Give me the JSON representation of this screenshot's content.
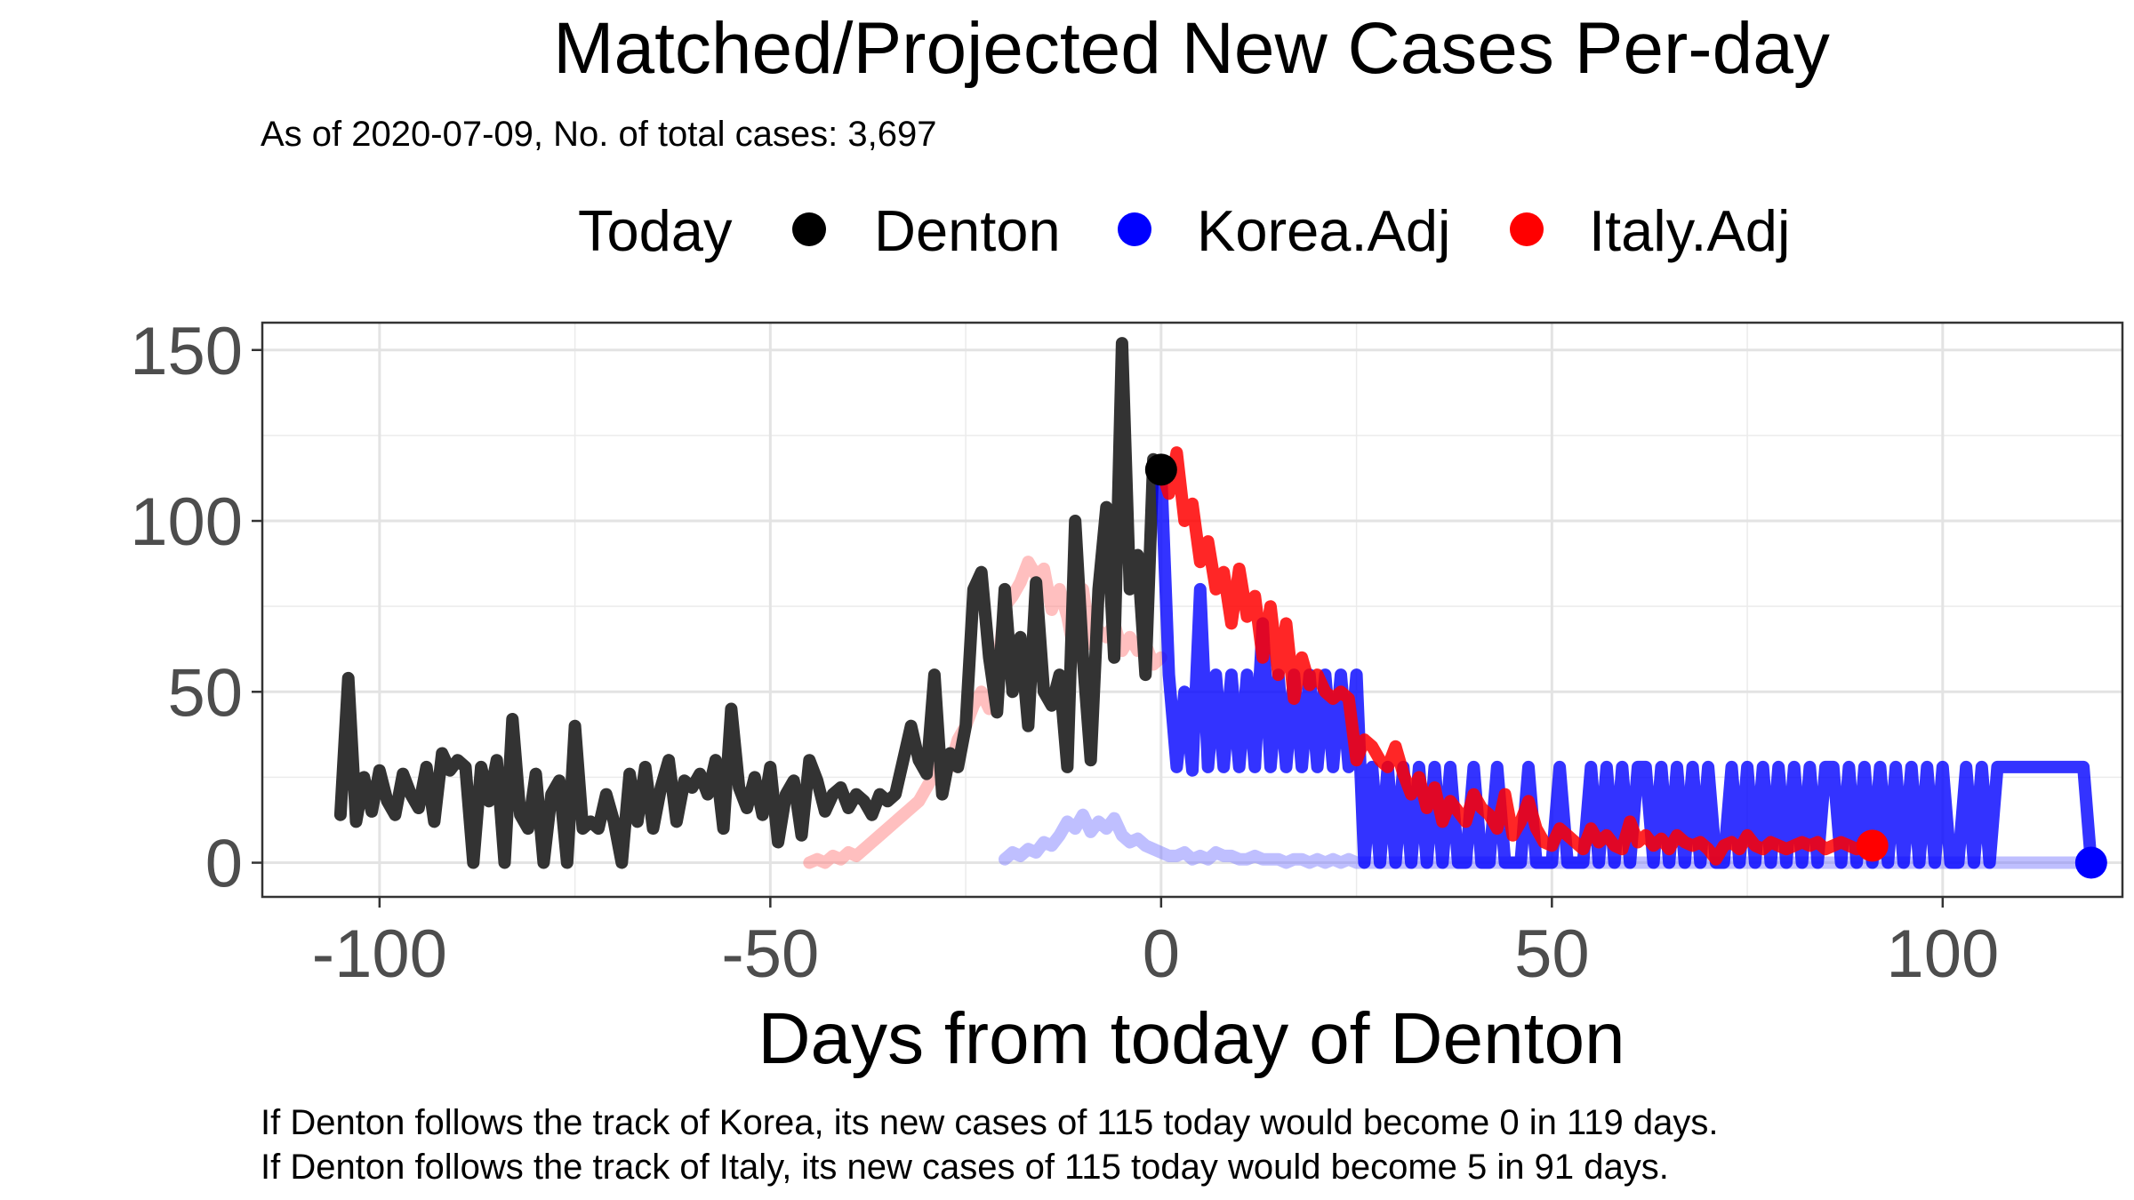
{
  "chart_data": {
    "type": "line",
    "title": "Matched/Projected New Cases Per-day",
    "subtitle": "As of 2020-07-09, No. of total cases: 3,697",
    "xlabel": "Days from today of Denton",
    "ylabel": "",
    "xlim": [
      -115,
      123
    ],
    "ylim": [
      -10,
      158
    ],
    "x_ticks": [
      -100,
      -50,
      0,
      50,
      100
    ],
    "x_tick_labels": [
      "-100",
      "-50",
      "0",
      "50",
      "100"
    ],
    "y_ticks": [
      0,
      50,
      100,
      150
    ],
    "y_tick_labels": [
      "0",
      "50",
      "100",
      "150"
    ],
    "grid": true,
    "legend": {
      "position": "top",
      "title": "Today",
      "entries": [
        {
          "label": "Denton",
          "color": "#000000"
        },
        {
          "label": "Korea.Adj",
          "color": "#0000ff"
        },
        {
          "label": "Italy.Adj",
          "color": "#ff0000"
        }
      ]
    },
    "series": [
      {
        "name": "Denton",
        "color": "#333333",
        "x": [
          -105,
          -104,
          -103,
          -102,
          -101,
          -100,
          -99,
          -98,
          -97,
          -96,
          -95,
          -94,
          -93,
          -92,
          -91,
          -90,
          -89,
          -88,
          -87,
          -86,
          -85,
          -84,
          -83,
          -82,
          -81,
          -80,
          -79,
          -78,
          -77,
          -76,
          -75,
          -74,
          -73,
          -72,
          -71,
          -70,
          -69,
          -68,
          -67,
          -66,
          -65,
          -64,
          -63,
          -62,
          -61,
          -60,
          -59,
          -58,
          -57,
          -56,
          -55,
          -54,
          -53,
          -52,
          -51,
          -50,
          -49,
          -48,
          -47,
          -46,
          -45,
          -44,
          -43,
          -42,
          -41,
          -40,
          -39,
          -38,
          -37,
          -36,
          -35,
          -34,
          -33,
          -32,
          -31,
          -30,
          -29,
          -28,
          -27,
          -26,
          -25,
          -24,
          -23,
          -22,
          -21,
          -20,
          -19,
          -18,
          -17,
          -16,
          -15,
          -14,
          -13,
          -12,
          -11,
          -10,
          -9,
          -8,
          -7,
          -6,
          -5,
          -4,
          -3,
          -2,
          -1,
          0
        ],
        "y": [
          14,
          54,
          12,
          25,
          15,
          27,
          18,
          14,
          26,
          20,
          16,
          28,
          12,
          32,
          27,
          30,
          28,
          0,
          28,
          18,
          30,
          0,
          42,
          14,
          10,
          26,
          0,
          20,
          24,
          0,
          40,
          10,
          12,
          10,
          20,
          12,
          0,
          26,
          12,
          28,
          10,
          22,
          30,
          12,
          24,
          22,
          26,
          20,
          30,
          10,
          45,
          22,
          16,
          25,
          14,
          28,
          6,
          20,
          24,
          8,
          30,
          24,
          15,
          20,
          22,
          16,
          20,
          18,
          14,
          20,
          18,
          20,
          30,
          40,
          30,
          26,
          55,
          20,
          32,
          28,
          40,
          80,
          85,
          60,
          44,
          80,
          50,
          66,
          40,
          82,
          50,
          46,
          55,
          28,
          100,
          60,
          30,
          80,
          104,
          60,
          152,
          80,
          90,
          55,
          118,
          115
        ],
        "opacity": 1
      },
      {
        "name": "Korea.Adj",
        "color": "#0000ff",
        "x": [
          0,
          1,
          2,
          3,
          4,
          5,
          6,
          7,
          8,
          9,
          10,
          11,
          12,
          13,
          14,
          15,
          16,
          17,
          18,
          19,
          20,
          21,
          22,
          23,
          24,
          25,
          26,
          27,
          28,
          29,
          30,
          31,
          32,
          33,
          34,
          35,
          36,
          37,
          38,
          39,
          40,
          41,
          42,
          43,
          44,
          45,
          46,
          47,
          48,
          49,
          50,
          51,
          52,
          53,
          54,
          55,
          56,
          57,
          58,
          59,
          60,
          61,
          62,
          63,
          64,
          65,
          66,
          67,
          68,
          69,
          70,
          71,
          72,
          73,
          74,
          75,
          76,
          77,
          78,
          79,
          80,
          81,
          82,
          83,
          84,
          85,
          86,
          87,
          88,
          89,
          90,
          91,
          92,
          93,
          94,
          95,
          96,
          97,
          98,
          99,
          100,
          101,
          102,
          103,
          104,
          105,
          106,
          107,
          108,
          109,
          110,
          111,
          112,
          113,
          114,
          115,
          116,
          117,
          118,
          119
        ],
        "y": [
          115,
          55,
          28,
          50,
          27,
          80,
          28,
          55,
          28,
          55,
          28,
          55,
          28,
          70,
          28,
          55,
          28,
          55,
          28,
          55,
          28,
          55,
          28,
          55,
          28,
          55,
          0,
          28,
          0,
          28,
          0,
          28,
          0,
          28,
          0,
          28,
          0,
          28,
          0,
          0,
          28,
          0,
          0,
          28,
          0,
          0,
          0,
          28,
          0,
          0,
          0,
          28,
          0,
          0,
          0,
          28,
          0,
          28,
          0,
          28,
          0,
          28,
          28,
          0,
          28,
          0,
          28,
          0,
          28,
          0,
          28,
          0,
          0,
          28,
          0,
          28,
          0,
          28,
          0,
          28,
          0,
          28,
          0,
          28,
          0,
          28,
          28,
          0,
          28,
          0,
          28,
          0,
          28,
          0,
          28,
          0,
          28,
          0,
          28,
          0,
          28,
          0,
          0,
          28,
          0,
          28,
          0,
          28,
          28,
          28,
          28,
          28,
          28,
          28,
          28,
          28,
          28,
          28,
          28,
          0
        ],
        "opacity": 0.8
      },
      {
        "name": "Italy.Adj",
        "color": "#ff0000",
        "x": [
          0,
          1,
          2,
          3,
          4,
          5,
          6,
          7,
          8,
          9,
          10,
          11,
          12,
          13,
          14,
          15,
          16,
          17,
          18,
          19,
          20,
          21,
          22,
          23,
          24,
          25,
          26,
          27,
          28,
          29,
          30,
          31,
          32,
          33,
          34,
          35,
          36,
          37,
          38,
          39,
          40,
          41,
          42,
          43,
          44,
          45,
          46,
          47,
          48,
          49,
          50,
          51,
          52,
          53,
          54,
          55,
          56,
          57,
          58,
          59,
          60,
          61,
          62,
          63,
          64,
          65,
          66,
          67,
          68,
          69,
          70,
          71,
          72,
          73,
          74,
          75,
          76,
          77,
          78,
          79,
          80,
          81,
          82,
          83,
          84,
          85,
          86,
          87,
          88,
          89,
          90,
          91
        ],
        "y": [
          115,
          108,
          120,
          100,
          105,
          88,
          94,
          80,
          85,
          70,
          86,
          72,
          78,
          60,
          75,
          55,
          70,
          48,
          60,
          52,
          55,
          50,
          48,
          50,
          48,
          30,
          36,
          34,
          30,
          28,
          34,
          26,
          20,
          25,
          16,
          22,
          12,
          18,
          15,
          12,
          20,
          16,
          14,
          10,
          20,
          8,
          12,
          18,
          10,
          6,
          5,
          10,
          8,
          6,
          4,
          10,
          6,
          8,
          5,
          4,
          12,
          6,
          8,
          5,
          7,
          4,
          8,
          6,
          5,
          6,
          4,
          1,
          5,
          6,
          4,
          8,
          5,
          4,
          6,
          5,
          4,
          5,
          6,
          5,
          6,
          4,
          5,
          6,
          5,
          4,
          5,
          5
        ],
        "opacity": 0.85
      },
      {
        "name": "",
        "color": "#ff8080",
        "x": [
          -45,
          -44,
          -43,
          -42,
          -41,
          -40,
          -39,
          -38,
          -37,
          -36,
          -35,
          -34,
          -33,
          -32,
          -31,
          -30,
          -29,
          -28,
          -27,
          -26,
          -25,
          -24,
          -23,
          -22,
          -21,
          -20,
          -19,
          -18,
          -17,
          -16,
          -15,
          -14,
          -13,
          -12,
          -11,
          -10,
          -9,
          -8,
          -7,
          -6,
          -5,
          -4,
          -3,
          -2,
          -1,
          0
        ],
        "y": [
          0,
          1,
          0,
          2,
          1,
          3,
          2,
          4,
          6,
          8,
          10,
          12,
          14,
          16,
          18,
          22,
          26,
          30,
          28,
          36,
          40,
          46,
          50,
          45,
          55,
          75,
          78,
          82,
          88,
          84,
          86,
          74,
          80,
          72,
          60,
          80,
          64,
          68,
          66,
          70,
          62,
          66,
          62,
          64,
          58,
          60
        ],
        "opacity": 0.5
      },
      {
        "name": "",
        "color": "#8080ff",
        "x": [
          -20,
          -19,
          -18,
          -17,
          -16,
          -15,
          -14,
          -13,
          -12,
          -11,
          -10,
          -9,
          -8,
          -7,
          -6,
          -5,
          -4,
          -3,
          -2,
          -1,
          0,
          1,
          2,
          3,
          4,
          5,
          6,
          7,
          8,
          9,
          10,
          11,
          12,
          13,
          14,
          15,
          16,
          17,
          18,
          19,
          20,
          21,
          22,
          23,
          24,
          25,
          30,
          35,
          40,
          45,
          50,
          55,
          60,
          65,
          70,
          75,
          80,
          85,
          90,
          95,
          100,
          105,
          110,
          115,
          119
        ],
        "y": [
          1,
          3,
          2,
          4,
          3,
          6,
          5,
          8,
          12,
          10,
          14,
          9,
          12,
          10,
          13,
          8,
          6,
          7,
          5,
          4,
          3,
          2,
          2,
          3,
          1,
          2,
          1,
          3,
          2,
          2,
          1,
          1,
          2,
          1,
          1,
          1,
          0,
          1,
          1,
          0,
          1,
          0,
          1,
          0,
          1,
          0,
          0,
          0,
          0,
          0,
          0,
          0,
          0,
          0,
          0,
          0,
          0,
          0,
          0,
          0,
          0,
          0,
          0,
          0,
          0
        ],
        "opacity": 0.5
      }
    ],
    "today_points": [
      {
        "series": "Denton",
        "x": 0,
        "y": 115,
        "color": "#000000"
      },
      {
        "series": "Korea.Adj",
        "x": 119,
        "y": 0,
        "color": "#0000ff"
      },
      {
        "series": "Italy.Adj",
        "x": 91,
        "y": 5,
        "color": "#ff0000"
      }
    ]
  },
  "caption": {
    "line1": "If Denton follows the track of Korea, its new cases of 115 today would become 0 in 119 days.",
    "line2": "If Denton follows the track of Italy, its new cases of 115 today would become 5 in 91 days."
  }
}
